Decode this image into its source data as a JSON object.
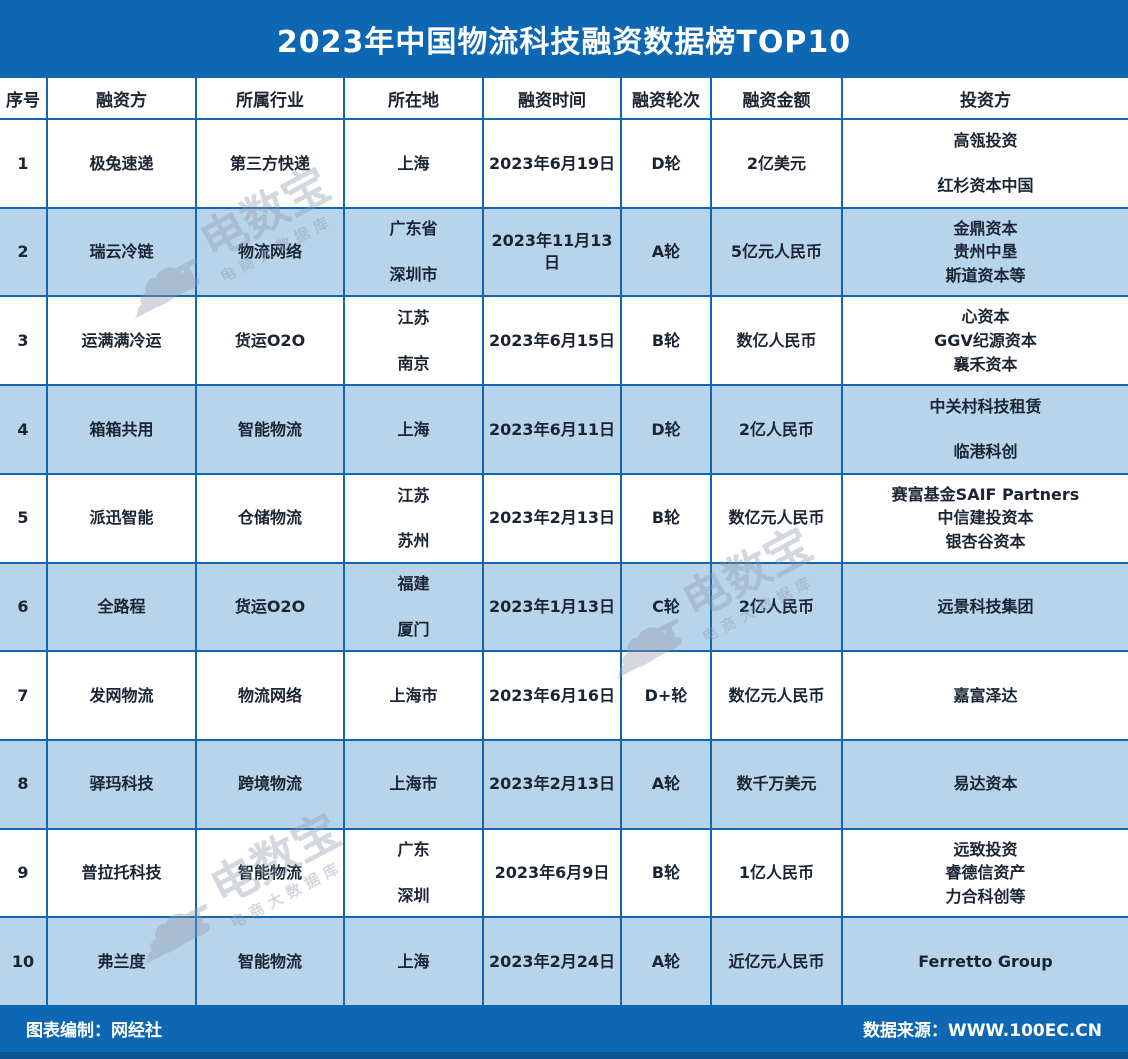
{
  "title": "2023年中国物流科技融资数据榜TOP10",
  "chart_data": {
    "type": "table",
    "title": "2023年中国物流科技融资数据榜TOP10",
    "columns": [
      "序号",
      "融资方",
      "所属行业",
      "所在地",
      "融资时间",
      "融资轮次",
      "融资金额",
      "投资方"
    ],
    "rows": [
      [
        [
          "1"
        ],
        [
          "极兔速递"
        ],
        [
          "第三方快递"
        ],
        [
          "上海"
        ],
        [
          "2023年6月19日"
        ],
        [
          "D轮"
        ],
        [
          "2亿美元"
        ],
        [
          "高瓴投资",
          "红杉资本中国"
        ]
      ],
      [
        [
          "2"
        ],
        [
          "瑞云冷链"
        ],
        [
          "物流网络"
        ],
        [
          "广东省",
          "深圳市"
        ],
        [
          "2023年11月13日"
        ],
        [
          "A轮"
        ],
        [
          "5亿元人民币"
        ],
        [
          "金鼎资本",
          "贵州中垦",
          "斯道资本等"
        ]
      ],
      [
        [
          "3"
        ],
        [
          "运满满冷运"
        ],
        [
          "货运O2O"
        ],
        [
          "江苏",
          "南京"
        ],
        [
          "2023年6月15日"
        ],
        [
          "B轮"
        ],
        [
          "数亿人民币"
        ],
        [
          "心资本",
          "GGV纪源资本",
          "襄禾资本"
        ]
      ],
      [
        [
          "4"
        ],
        [
          "箱箱共用"
        ],
        [
          "智能物流"
        ],
        [
          "上海"
        ],
        [
          "2023年6月11日"
        ],
        [
          "D轮"
        ],
        [
          "2亿人民币"
        ],
        [
          "中关村科技租赁",
          "临港科创"
        ]
      ],
      [
        [
          "5"
        ],
        [
          "派迅智能"
        ],
        [
          "仓储物流"
        ],
        [
          "江苏",
          "苏州"
        ],
        [
          "2023年2月13日"
        ],
        [
          "B轮"
        ],
        [
          "数亿元人民币"
        ],
        [
          "赛富基金SAIF Partners",
          "中信建投资本",
          "银杏谷资本"
        ]
      ],
      [
        [
          "6"
        ],
        [
          "全路程"
        ],
        [
          "货运O2O"
        ],
        [
          "福建",
          "厦门"
        ],
        [
          "2023年1月13日"
        ],
        [
          "C轮"
        ],
        [
          "2亿人民币"
        ],
        [
          "远景科技集团"
        ]
      ],
      [
        [
          "7"
        ],
        [
          "发网物流"
        ],
        [
          "物流网络"
        ],
        [
          "上海市"
        ],
        [
          "2023年6月16日"
        ],
        [
          "D+轮"
        ],
        [
          "数亿元人民币"
        ],
        [
          "嘉富泽达"
        ]
      ],
      [
        [
          "8"
        ],
        [
          "驿玛科技"
        ],
        [
          "跨境物流"
        ],
        [
          "上海市"
        ],
        [
          "2023年2月13日"
        ],
        [
          "A轮"
        ],
        [
          "数千万美元"
        ],
        [
          "易达资本"
        ]
      ],
      [
        [
          "9"
        ],
        [
          "普拉托科技"
        ],
        [
          "智能物流"
        ],
        [
          "广东",
          "深圳"
        ],
        [
          "2023年6月9日"
        ],
        [
          "B轮"
        ],
        [
          "1亿人民币"
        ],
        [
          "远致投资",
          "睿德信资产",
          "力合科创等"
        ]
      ],
      [
        [
          "10"
        ],
        [
          "弗兰度"
        ],
        [
          "智能物流"
        ],
        [
          "上海"
        ],
        [
          "2023年2月24日"
        ],
        [
          "A轮"
        ],
        [
          "近亿元人民币"
        ],
        [
          "Ferretto Group"
        ]
      ]
    ]
  },
  "footer": {
    "left": "图表编制：网经社",
    "right": "数据来源：WWW.100EC.CN"
  },
  "watermark": {
    "logo_dt": "DT",
    "main": "电数宝",
    "sub": "电商大数据库"
  },
  "colors": {
    "primary_blue": "#0d67b2",
    "grid_blue": "#1467ad",
    "row_alt_blue": "#b8d4eb",
    "footer_strip_blue": "#0a5591",
    "text_dark": "#1b2433",
    "watermark_gray": "#8f9aab"
  }
}
